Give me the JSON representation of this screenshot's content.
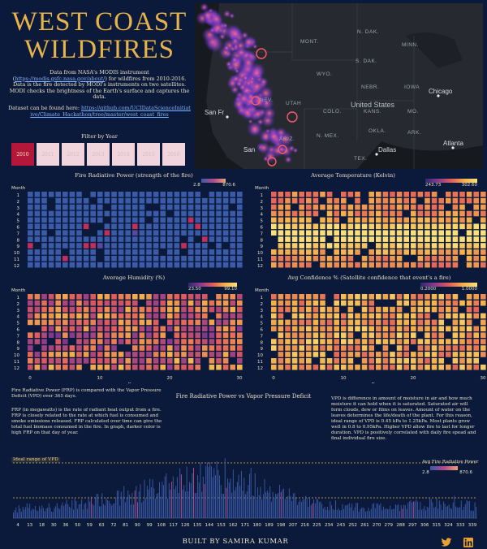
{
  "header": {
    "title_line1": "WEST COAST",
    "title_line2": "WILDFIRES",
    "intro_a": "Data from NASA's MODIS instrument (",
    "intro_link": "https://modis.gsfc.nasa.gov/about/",
    "intro_b": ") for wildfires from 2010-2016. Data is the fire detected by MODI's instruments on two satellites. MODI checks the brightness of the Earth's surface and captures the data.",
    "dataset_a": "Dataset can be found here: ",
    "dataset_link": "https://github.com/UCIDataScienceInitiative/Climate_Hackathon/tree/master/west_coast_fires",
    "filter_label": "Filter by Year",
    "years": [
      "2010",
      "2011",
      "2012",
      "2013",
      "2014",
      "2015",
      "2016"
    ],
    "selected_year": "2010"
  },
  "map": {
    "labels": {
      "mont": "MONT.",
      "ndak": "N. DAK.",
      "minn": "MINN.",
      "sdak": "S. DAK.",
      "wyo": "WYO.",
      "nebr": "NEBR.",
      "iowa": "IOWA",
      "nev": "NEV.",
      "utah": "UTAH",
      "colo": "COLO.",
      "kans": "KANS.",
      "mo": "MO.",
      "okla": "OKLA.",
      "nmex": "N. MEX.",
      "ark": "ARK.",
      "ariz": "ARIZ.",
      "tex": "TEX.",
      "us": "United States",
      "chicago": "Chicago",
      "sf": "San Fr",
      "san": "San",
      "dallas": "Dallas",
      "atlanta": "Atlanta"
    }
  },
  "panels": {
    "frp_title": "Fire Radiative Power (strength of the fire)",
    "temp_title": "Average Temperature (Kelvin)",
    "hum_title": "Average Humidity (%)",
    "conf_title": "Avg Confidence % (Satellite confidence that event's a fire)",
    "month_label": "Month",
    "day_label": "Day",
    "frp_min": "2.8",
    "frp_max": "870.6",
    "temp_min": "243.73",
    "temp_max": "302.60",
    "hum_min": "23.50",
    "hum_max": "99.10",
    "conf_min": "0.2000",
    "conf_max": "1.0000",
    "month_ticks": [
      "1",
      "2",
      "3",
      "4",
      "5",
      "6",
      "7",
      "8",
      "9",
      "10",
      "11",
      "12"
    ],
    "day_ticks": [
      "0",
      "10",
      "20",
      "30"
    ]
  },
  "heatmaps": {
    "frp": {
      "base": 0.03,
      "spread": 0.06,
      "summer": 0.02,
      "hot": 0.05,
      "palette": "frp"
    },
    "temp": {
      "base": 0.62,
      "spread": 0.1,
      "summer": 0.45,
      "hot": 0.0,
      "palette": "magma"
    },
    "hum": {
      "base": 0.55,
      "spread": 0.25,
      "summer": -0.1,
      "hot": 0.0,
      "palette": "magma"
    },
    "conf": {
      "base": 0.7,
      "spread": 0.18,
      "summer": 0.05,
      "hot": 0.0,
      "palette": "magma"
    }
  },
  "lower": {
    "left_p1": "Fire Radiative Power (FRP) is compared with the Vapor Pressure Deficit (VPD) over 365 days.",
    "left_p2": "FRP (in megawatts) is the rate of radiant heat output from a fire. FRP is closely related to the rate at which fuel is consumed and smoke emissions released.  FRP calculated over time can give the total fuel biomass consumed in the fire. In graph, darker color is high FRP on that day of year.",
    "chart_title": "Fire Radiative Power vs Vapor Pressure Deficit",
    "right_p": "VPD is difference in amount of moisture in air and how much moisture it can hold when it is saturated. Saturated air will form clouds, dew or films on leaves. Amount of water on the leaves determines the life/death of the plant. For this reason, ideal range of VPD is 0.45 kPa to 1.25kPa. Most plants grow well in 0.8 to 0.95kPa. Higher VPD allow fire to last for longer duration. VPD is positively correlated with daily fire spead and final individual fire size.",
    "ideal_label": "Ideal range of VPD",
    "legend_title": "Avg Fire Radiative Power",
    "legend_min": "2.8",
    "legend_max": "870.6"
  },
  "chart_data": {
    "type": "bar",
    "title": "Fire Radiative Power vs Vapor Pressure Deficit",
    "x_ticks": [
      "4",
      "13",
      "18",
      "30",
      "36",
      "50",
      "59",
      "63",
      "72",
      "81",
      "90",
      "99",
      "108",
      "117",
      "126",
      "135",
      "144",
      "153",
      "162",
      "171",
      "180",
      "189",
      "198",
      "207",
      "216",
      "225",
      "234",
      "243",
      "252",
      "261",
      "270",
      "279",
      "288",
      "297",
      "306",
      "315",
      "324",
      "333",
      "339"
    ],
    "profile": [
      0.2,
      0.22,
      0.25,
      0.24,
      0.28,
      0.3,
      0.32,
      0.38,
      0.42,
      0.48,
      0.55,
      0.62,
      0.7,
      0.78,
      0.85,
      0.92,
      0.95,
      0.93,
      0.88,
      0.8,
      0.72,
      0.62,
      0.5,
      0.42,
      0.35,
      0.3,
      0.28,
      0.26,
      0.25,
      0.24,
      0.24,
      0.25,
      0.26,
      0.28,
      0.3,
      0.32,
      0.34,
      0.3,
      0.25
    ],
    "color_low": "#3b5aa8",
    "color_high": "#c24a8a"
  },
  "footer": {
    "built_by": "BUILT BY SAMIRA KUMAR"
  },
  "colors": {
    "bg": "#0b1a3a",
    "title": "#e6b24a",
    "active_year": "#b3173a"
  }
}
